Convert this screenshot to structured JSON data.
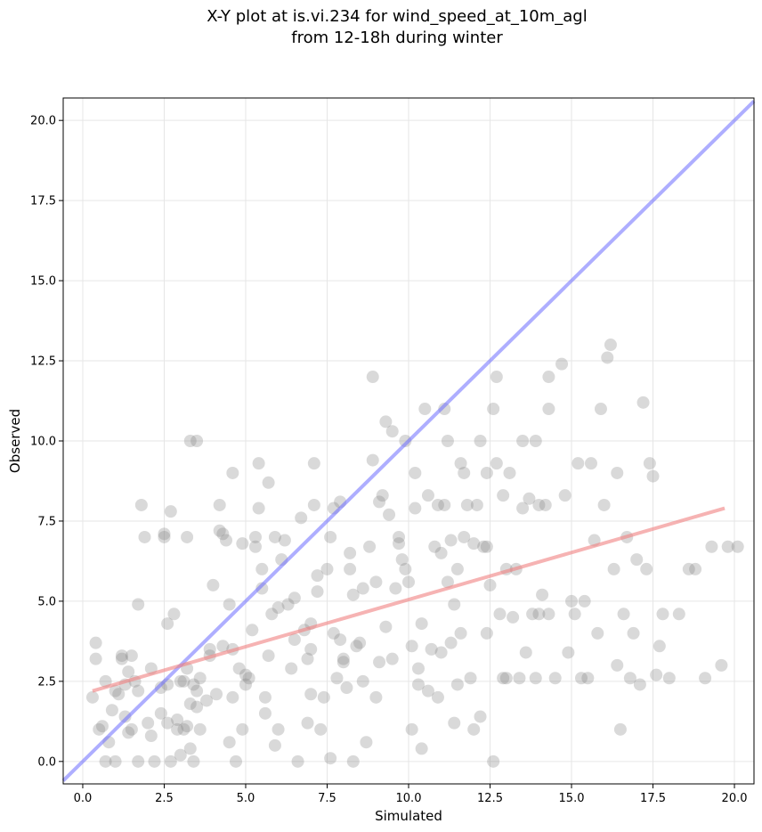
{
  "chart_data": {
    "type": "scatter",
    "title": "X-Y plot at is.vi.234 for wind_speed_at_10m_agl",
    "subtitle": "from 12-18h during winter",
    "xlabel": "Simulated",
    "ylabel": "Observed",
    "xlim": [
      -0.6,
      20.6
    ],
    "ylim": [
      -0.7,
      20.7
    ],
    "xticks": [
      "0.0",
      "2.5",
      "5.0",
      "7.5",
      "10.0",
      "12.5",
      "15.0",
      "17.5",
      "20.0"
    ],
    "yticks": [
      "0.0",
      "2.5",
      "5.0",
      "7.5",
      "10.0",
      "12.5",
      "15.0",
      "17.5",
      "20.0"
    ],
    "grid": true,
    "colors": {
      "points": "#808080",
      "identity_line": "#6b6bff",
      "fit_line": "#f08080"
    },
    "identity_line": {
      "x": [
        -0.6,
        20.6
      ],
      "y": [
        -0.6,
        20.6
      ]
    },
    "fit_line": {
      "x": [
        0.3,
        19.7
      ],
      "y": [
        2.2,
        7.9
      ]
    },
    "points": [
      [
        0.3,
        2.0
      ],
      [
        0.4,
        3.7
      ],
      [
        0.4,
        3.2
      ],
      [
        0.5,
        1.0
      ],
      [
        0.6,
        1.1
      ],
      [
        0.7,
        2.5
      ],
      [
        0.7,
        0.0
      ],
      [
        0.8,
        0.6
      ],
      [
        0.9,
        1.6
      ],
      [
        1.0,
        2.2
      ],
      [
        1.1,
        2.1
      ],
      [
        1.2,
        3.3
      ],
      [
        1.2,
        3.2
      ],
      [
        1.3,
        1.4
      ],
      [
        1.3,
        2.4
      ],
      [
        1.4,
        2.8
      ],
      [
        1.5,
        1.0
      ],
      [
        1.5,
        3.3
      ],
      [
        1.6,
        2.5
      ],
      [
        1.7,
        2.2
      ],
      [
        1.7,
        4.9
      ],
      [
        1.8,
        8.0
      ],
      [
        1.9,
        7.0
      ],
      [
        1.7,
        0.0
      ],
      [
        2.0,
        1.2
      ],
      [
        2.1,
        0.8
      ],
      [
        2.1,
        2.9
      ],
      [
        2.2,
        0.0
      ],
      [
        2.4,
        1.5
      ],
      [
        2.4,
        2.3
      ],
      [
        2.5,
        7.1
      ],
      [
        2.5,
        7.0
      ],
      [
        2.6,
        4.3
      ],
      [
        2.6,
        2.4
      ],
      [
        2.6,
        1.2
      ],
      [
        2.7,
        0.0
      ],
      [
        2.7,
        7.8
      ],
      [
        2.8,
        4.6
      ],
      [
        2.9,
        1.3
      ],
      [
        3.0,
        2.5
      ],
      [
        3.0,
        0.2
      ],
      [
        3.1,
        1.0
      ],
      [
        3.2,
        1.1
      ],
      [
        3.2,
        2.9
      ],
      [
        3.2,
        7.0
      ],
      [
        3.3,
        1.8
      ],
      [
        3.3,
        0.4
      ],
      [
        3.4,
        2.4
      ],
      [
        3.3,
        10.0
      ],
      [
        3.5,
        10.0
      ],
      [
        3.4,
        0.0
      ],
      [
        3.5,
        2.2
      ],
      [
        3.6,
        1.0
      ],
      [
        3.8,
        1.9
      ],
      [
        3.9,
        3.3
      ],
      [
        3.9,
        3.5
      ],
      [
        4.0,
        5.5
      ],
      [
        4.1,
        2.1
      ],
      [
        4.2,
        8.0
      ],
      [
        4.2,
        7.2
      ],
      [
        4.3,
        7.1
      ],
      [
        4.3,
        3.6
      ],
      [
        4.4,
        6.9
      ],
      [
        4.5,
        0.6
      ],
      [
        4.6,
        3.5
      ],
      [
        4.5,
        4.9
      ],
      [
        4.6,
        9.0
      ],
      [
        4.6,
        2.0
      ],
      [
        4.7,
        0.0
      ],
      [
        4.8,
        2.9
      ],
      [
        4.9,
        1.0
      ],
      [
        5.0,
        2.4
      ],
      [
        5.0,
        2.7
      ],
      [
        4.9,
        6.8
      ],
      [
        5.2,
        4.1
      ],
      [
        5.3,
        6.7
      ],
      [
        5.3,
        7.0
      ],
      [
        5.4,
        9.3
      ],
      [
        5.4,
        7.9
      ],
      [
        5.5,
        6.0
      ],
      [
        5.5,
        5.4
      ],
      [
        5.6,
        2.0
      ],
      [
        5.6,
        1.5
      ],
      [
        5.7,
        3.3
      ],
      [
        5.7,
        8.7
      ],
      [
        5.8,
        4.6
      ],
      [
        5.9,
        7.0
      ],
      [
        5.9,
        0.5
      ],
      [
        6.0,
        1.0
      ],
      [
        6.0,
        4.8
      ],
      [
        6.1,
        6.3
      ],
      [
        6.2,
        6.9
      ],
      [
        6.3,
        4.9
      ],
      [
        6.4,
        2.9
      ],
      [
        6.5,
        3.8
      ],
      [
        6.5,
        5.1
      ],
      [
        6.6,
        0.0
      ],
      [
        6.7,
        7.6
      ],
      [
        6.8,
        4.1
      ],
      [
        6.9,
        1.2
      ],
      [
        7.0,
        2.1
      ],
      [
        7.0,
        3.5
      ],
      [
        7.0,
        4.3
      ],
      [
        7.1,
        9.3
      ],
      [
        7.1,
        8.0
      ],
      [
        7.2,
        5.8
      ],
      [
        7.2,
        5.3
      ],
      [
        7.3,
        1.0
      ],
      [
        7.4,
        2.0
      ],
      [
        7.5,
        6.0
      ],
      [
        7.6,
        7.0
      ],
      [
        7.6,
        0.1
      ],
      [
        7.7,
        4.0
      ],
      [
        7.7,
        7.9
      ],
      [
        7.8,
        2.6
      ],
      [
        7.9,
        8.1
      ],
      [
        8.0,
        3.1
      ],
      [
        8.0,
        3.2
      ],
      [
        8.1,
        2.3
      ],
      [
        8.2,
        6.5
      ],
      [
        8.2,
        6.0
      ],
      [
        8.3,
        5.2
      ],
      [
        8.3,
        0.0
      ],
      [
        8.4,
        3.6
      ],
      [
        8.5,
        3.7
      ],
      [
        8.6,
        5.4
      ],
      [
        8.6,
        2.5
      ],
      [
        8.7,
        0.6
      ],
      [
        8.8,
        6.7
      ],
      [
        8.9,
        9.4
      ],
      [
        8.9,
        12.0
      ],
      [
        9.0,
        5.6
      ],
      [
        9.0,
        2.0
      ],
      [
        9.1,
        3.1
      ],
      [
        9.1,
        8.1
      ],
      [
        9.2,
        8.3
      ],
      [
        9.3,
        4.2
      ],
      [
        9.3,
        10.6
      ],
      [
        9.4,
        7.7
      ],
      [
        9.5,
        3.2
      ],
      [
        9.5,
        10.3
      ],
      [
        9.6,
        5.4
      ],
      [
        9.7,
        6.8
      ],
      [
        9.7,
        7.0
      ],
      [
        9.8,
        6.3
      ],
      [
        9.9,
        10.0
      ],
      [
        9.9,
        6.0
      ],
      [
        10.0,
        5.6
      ],
      [
        10.1,
        3.6
      ],
      [
        10.1,
        1.0
      ],
      [
        10.2,
        9.0
      ],
      [
        10.2,
        7.9
      ],
      [
        10.3,
        2.4
      ],
      [
        10.3,
        2.9
      ],
      [
        10.4,
        4.3
      ],
      [
        10.4,
        0.4
      ],
      [
        10.5,
        11.0
      ],
      [
        10.6,
        2.2
      ],
      [
        10.6,
        8.3
      ],
      [
        10.7,
        3.5
      ],
      [
        10.8,
        6.7
      ],
      [
        10.9,
        8.0
      ],
      [
        10.9,
        2.0
      ],
      [
        11.0,
        6.5
      ],
      [
        11.0,
        3.4
      ],
      [
        11.1,
        8.0
      ],
      [
        11.1,
        11.0
      ],
      [
        11.2,
        10.0
      ],
      [
        11.2,
        5.6
      ],
      [
        11.3,
        6.9
      ],
      [
        11.3,
        3.7
      ],
      [
        11.4,
        4.9
      ],
      [
        11.4,
        1.2
      ],
      [
        11.5,
        6.0
      ],
      [
        11.5,
        2.4
      ],
      [
        11.6,
        9.3
      ],
      [
        11.6,
        4.0
      ],
      [
        11.7,
        7.0
      ],
      [
        11.7,
        9.0
      ],
      [
        11.8,
        8.0
      ],
      [
        11.9,
        2.6
      ],
      [
        12.0,
        6.8
      ],
      [
        12.0,
        1.0
      ],
      [
        12.1,
        8.0
      ],
      [
        12.2,
        1.4
      ],
      [
        12.2,
        10.0
      ],
      [
        12.3,
        6.7
      ],
      [
        12.4,
        9.0
      ],
      [
        12.4,
        4.0
      ],
      [
        12.5,
        5.5
      ],
      [
        12.6,
        11.0
      ],
      [
        12.6,
        0.0
      ],
      [
        12.7,
        12.0
      ],
      [
        12.7,
        9.3
      ],
      [
        12.8,
        4.6
      ],
      [
        12.9,
        8.3
      ],
      [
        13.0,
        6.0
      ],
      [
        13.0,
        2.6
      ],
      [
        13.1,
        9.0
      ],
      [
        13.2,
        4.5
      ],
      [
        13.3,
        6.0
      ],
      [
        13.4,
        2.6
      ],
      [
        13.5,
        10.0
      ],
      [
        13.5,
        7.9
      ],
      [
        13.6,
        3.4
      ],
      [
        13.7,
        8.2
      ],
      [
        13.8,
        4.6
      ],
      [
        13.9,
        2.6
      ],
      [
        13.9,
        10.0
      ],
      [
        14.0,
        8.0
      ],
      [
        14.1,
        5.2
      ],
      [
        14.2,
        8.0
      ],
      [
        14.3,
        11.0
      ],
      [
        14.3,
        12.0
      ],
      [
        14.3,
        4.6
      ],
      [
        14.5,
        2.6
      ],
      [
        14.7,
        12.4
      ],
      [
        14.8,
        8.3
      ],
      [
        14.9,
        3.4
      ],
      [
        15.0,
        5.0
      ],
      [
        15.1,
        4.6
      ],
      [
        15.2,
        9.3
      ],
      [
        15.3,
        2.6
      ],
      [
        15.4,
        5.0
      ],
      [
        15.5,
        2.6
      ],
      [
        15.6,
        9.3
      ],
      [
        15.7,
        6.9
      ],
      [
        15.8,
        4.0
      ],
      [
        15.9,
        11.0
      ],
      [
        16.0,
        8.0
      ],
      [
        16.1,
        12.6
      ],
      [
        16.2,
        13.0
      ],
      [
        16.3,
        6.0
      ],
      [
        16.4,
        3.0
      ],
      [
        16.4,
        9.0
      ],
      [
        16.5,
        1.0
      ],
      [
        16.6,
        4.6
      ],
      [
        16.7,
        7.0
      ],
      [
        16.8,
        2.6
      ],
      [
        16.9,
        4.0
      ],
      [
        17.0,
        6.3
      ],
      [
        17.1,
        2.4
      ],
      [
        17.2,
        11.2
      ],
      [
        17.3,
        6.0
      ],
      [
        17.4,
        9.3
      ],
      [
        17.5,
        8.9
      ],
      [
        17.6,
        2.7
      ],
      [
        17.7,
        3.6
      ],
      [
        17.8,
        4.6
      ],
      [
        18.0,
        2.6
      ],
      [
        18.3,
        4.6
      ],
      [
        18.6,
        6.0
      ],
      [
        18.8,
        6.0
      ],
      [
        19.1,
        2.6
      ],
      [
        19.3,
        6.7
      ],
      [
        19.6,
        3.0
      ],
      [
        19.8,
        6.7
      ],
      [
        20.1,
        6.7
      ],
      [
        3.1,
        2.5
      ],
      [
        2.9,
        1.0
      ],
      [
        3.5,
        1.7
      ],
      [
        3.6,
        2.6
      ],
      [
        1.0,
        0.0
      ],
      [
        1.4,
        0.9
      ],
      [
        6.9,
        3.2
      ],
      [
        7.9,
        3.8
      ],
      [
        5.1,
        2.6
      ],
      [
        12.9,
        2.6
      ],
      [
        12.4,
        6.7
      ],
      [
        14.0,
        4.6
      ]
    ]
  }
}
